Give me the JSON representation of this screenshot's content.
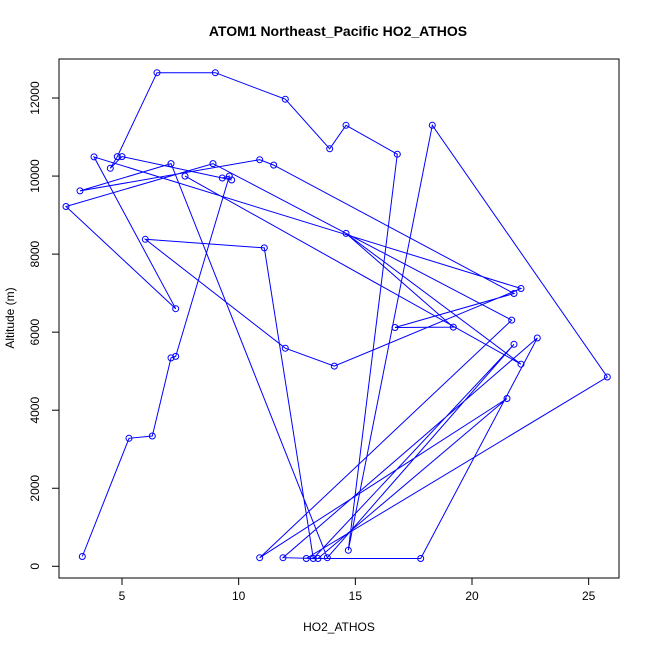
{
  "chart_data": {
    "type": "scatter",
    "title": "ATOM1 Northeast_Pacific HO2_ATHOS",
    "xlabel": "HO2_ATHOS",
    "ylabel": "Altitude (m)",
    "xlim": [
      2.3,
      26.3
    ],
    "ylim": [
      -300,
      13000
    ],
    "xticks": [
      5,
      10,
      15,
      20,
      25
    ],
    "yticks": [
      0,
      2000,
      4000,
      6000,
      8000,
      10000,
      12000
    ],
    "grid": false,
    "legend": "none",
    "color": "#0000ff",
    "series": [
      {
        "x": [
          3.3,
          5.3,
          6.3,
          7.1,
          7.3,
          9.6,
          9.3,
          9.7,
          5.0,
          4.5,
          4.8,
          6.5,
          9.0,
          12.0,
          13.9,
          14.6,
          16.8,
          14.7,
          18.3,
          25.8,
          12.9,
          17.8,
          22.8,
          11.9,
          13.4,
          21.5,
          10.9,
          21.7,
          8.9,
          2.6,
          7.3,
          3.8,
          22.1,
          14.1,
          12.0,
          6.0,
          11.1,
          13.2,
          21.8,
          13.8,
          7.1,
          3.2,
          10.9,
          11.5,
          21.8,
          16.7,
          19.2,
          14.6,
          22.1,
          7.7
        ],
        "y": [
          250,
          3280,
          3340,
          5340,
          5380,
          10000,
          9950,
          9900,
          10500,
          10200,
          10500,
          12650,
          12650,
          11970,
          10700,
          11300,
          10560,
          410,
          11300,
          4850,
          200,
          200,
          5850,
          220,
          200,
          4300,
          220,
          6310,
          10320,
          9220,
          6600,
          10490,
          7120,
          5130,
          5590,
          8380,
          8160,
          200,
          5690,
          220,
          10320,
          9620,
          10420,
          10280,
          6990,
          6120,
          6130,
          8530,
          5180,
          10000
        ]
      }
    ]
  }
}
